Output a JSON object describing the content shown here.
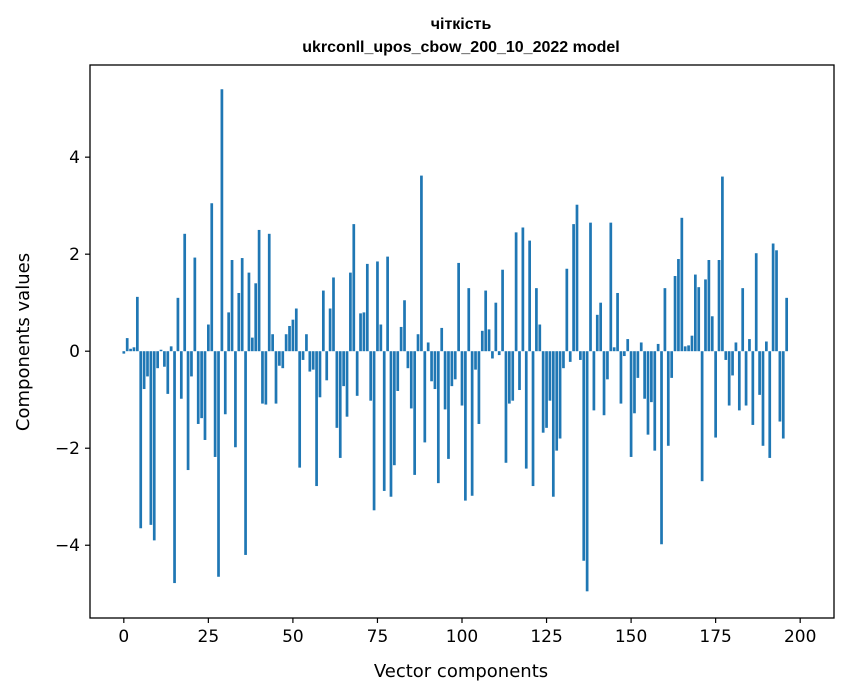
{
  "chart_data": {
    "type": "bar",
    "title": "чіткість",
    "subtitle": "ukrconll_upos_cbow_200_10_2022 model",
    "xlabel": "Vector components",
    "ylabel": "Components values",
    "xlim": [
      -10,
      210
    ],
    "ylim": [
      -5.5,
      5.9
    ],
    "xticks": [
      0,
      25,
      50,
      75,
      100,
      125,
      150,
      175,
      200
    ],
    "yticks": [
      -4,
      -2,
      0,
      2,
      4
    ],
    "ytick_labels": [
      "−4",
      "−2",
      "0",
      "2",
      "4"
    ],
    "grid": false,
    "color": "#1f77b4",
    "values": [
      -0.05,
      0.27,
      0.05,
      0.08,
      1.12,
      -3.65,
      -0.78,
      -0.52,
      -3.58,
      -3.9,
      -0.35,
      0.03,
      -0.32,
      -0.88,
      0.1,
      -4.78,
      1.1,
      -0.98,
      2.42,
      -2.45,
      -0.52,
      1.93,
      -1.5,
      -1.38,
      -1.83,
      0.55,
      3.05,
      -2.18,
      -4.65,
      5.4,
      -1.3,
      0.8,
      1.88,
      -1.98,
      1.2,
      1.92,
      -4.2,
      1.62,
      0.28,
      1.4,
      2.5,
      -1.08,
      -1.1,
      2.42,
      0.35,
      -1.08,
      -0.3,
      -0.35,
      0.35,
      0.52,
      0.65,
      0.88,
      -2.4,
      -0.18,
      0.35,
      -0.42,
      -0.38,
      -2.78,
      -0.95,
      1.25,
      -0.6,
      0.88,
      1.52,
      -1.58,
      -2.2,
      -0.72,
      -1.35,
      1.62,
      2.62,
      -0.92,
      0.78,
      0.8,
      1.8,
      -1.02,
      -3.28,
      1.85,
      0.55,
      -2.88,
      1.95,
      -3.0,
      -2.35,
      -0.82,
      0.5,
      1.05,
      -0.35,
      -1.18,
      -2.55,
      0.35,
      3.62,
      -1.88,
      0.18,
      -0.62,
      -0.78,
      -2.72,
      0.48,
      -1.2,
      -2.22,
      -0.72,
      -0.58,
      1.82,
      -1.12,
      -3.08,
      1.3,
      -2.98,
      -0.38,
      -1.5,
      0.42,
      1.25,
      0.45,
      -0.15,
      1.0,
      -0.08,
      1.68,
      -2.3,
      -1.08,
      -1.02,
      2.45,
      -0.8,
      2.55,
      -2.42,
      2.28,
      -2.78,
      1.3,
      0.55,
      -1.68,
      -1.58,
      -1.02,
      -3.0,
      -2.05,
      -1.8,
      -0.35,
      1.7,
      -0.22,
      2.62,
      3.02,
      -0.18,
      -4.32,
      -4.95,
      2.65,
      -1.22,
      0.75,
      1.0,
      -1.32,
      -0.58,
      2.65,
      0.08,
      1.2,
      -1.08,
      -0.1,
      0.25,
      -2.18,
      -1.28,
      -0.55,
      0.18,
      -0.98,
      -1.72,
      -1.05,
      -2.05,
      0.15,
      -3.98,
      1.3,
      -1.95,
      -0.55,
      1.55,
      1.9,
      2.75,
      0.1,
      0.12,
      0.32,
      1.58,
      1.32,
      -2.68,
      1.48,
      1.88,
      0.72,
      -1.78,
      1.88,
      3.6,
      -0.18,
      -1.12,
      -0.5,
      0.18,
      -1.22,
      1.3,
      -1.12,
      0.25,
      -1.52,
      2.02,
      -0.9,
      -1.95,
      0.2,
      -2.2,
      2.22,
      2.08,
      -1.45,
      -1.8,
      1.1
    ]
  }
}
